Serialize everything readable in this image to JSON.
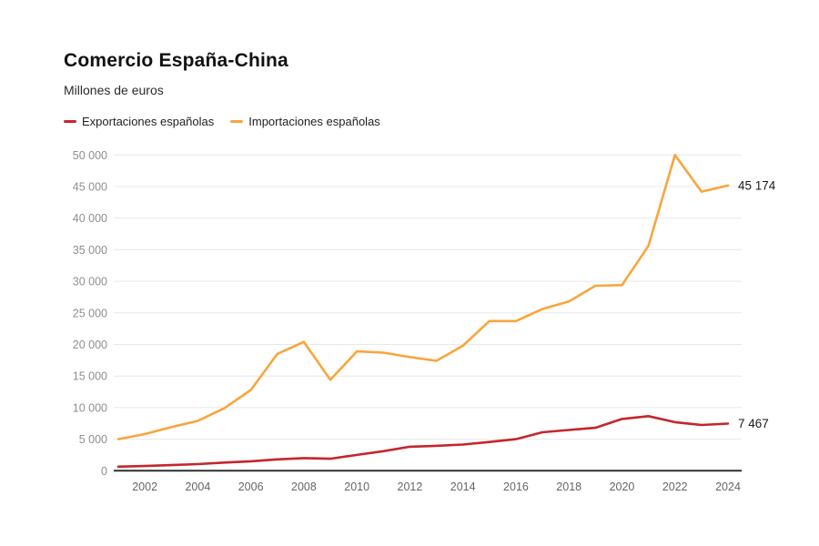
{
  "header": {
    "title": "Comercio España-China",
    "subtitle": "Millones de euros"
  },
  "legend": [
    {
      "label": "Exportaciones españolas",
      "color": "#c4262c"
    },
    {
      "label": "Importaciones españolas",
      "color": "#f9a53c"
    }
  ],
  "colors": {
    "background": "#ffffff",
    "grid": "#e8e8e8",
    "axis": "#2f2f2f",
    "ytick_text": "#8f8f8f",
    "xtick_text": "#666666",
    "value_label": "#1a1a1a",
    "exports_red": "#c4262c",
    "imports_orange": "#f9a53c"
  },
  "chart_data": {
    "type": "line",
    "title": "Comercio España-China",
    "subtitle": "Millones de euros",
    "xlabel": "",
    "ylabel": "Millones de euros",
    "grid": "horizontal",
    "legend_position": "top",
    "ylim": [
      0,
      50000
    ],
    "ytick_step": 5000,
    "ytick_labels": [
      "0",
      "5 000",
      "10 000",
      "15 000",
      "20 000",
      "25 000",
      "30 000",
      "35 000",
      "40 000",
      "45 000",
      "50 000"
    ],
    "xtick_labels": [
      "2002",
      "2004",
      "2006",
      "2008",
      "2010",
      "2012",
      "2014",
      "2016",
      "2018",
      "2020",
      "2022",
      "2024"
    ],
    "x": [
      2001,
      2002,
      2003,
      2004,
      2005,
      2006,
      2007,
      2008,
      2009,
      2010,
      2011,
      2012,
      2013,
      2014,
      2015,
      2016,
      2017,
      2018,
      2019,
      2020,
      2021,
      2022,
      2023,
      2024
    ],
    "series": [
      {
        "id": "importaciones",
        "name": "Importaciones españolas",
        "color": "#f9a53c",
        "values": [
          5000,
          5800,
          6900,
          7900,
          9900,
          12800,
          18500,
          20400,
          14400,
          18900,
          18700,
          18000,
          17400,
          19800,
          23700,
          23700,
          25600,
          26800,
          29300,
          29400,
          35600,
          50000,
          44200,
          45174
        ],
        "end_label": "45 174"
      },
      {
        "id": "exportaciones",
        "name": "Exportaciones españolas",
        "color": "#c4262c",
        "values": [
          650,
          750,
          900,
          1050,
          1300,
          1500,
          1800,
          2000,
          1900,
          2500,
          3100,
          3800,
          3950,
          4150,
          4550,
          5000,
          6100,
          6450,
          6800,
          8200,
          8650,
          7700,
          7250,
          7467
        ],
        "end_label": "7 467"
      }
    ]
  }
}
